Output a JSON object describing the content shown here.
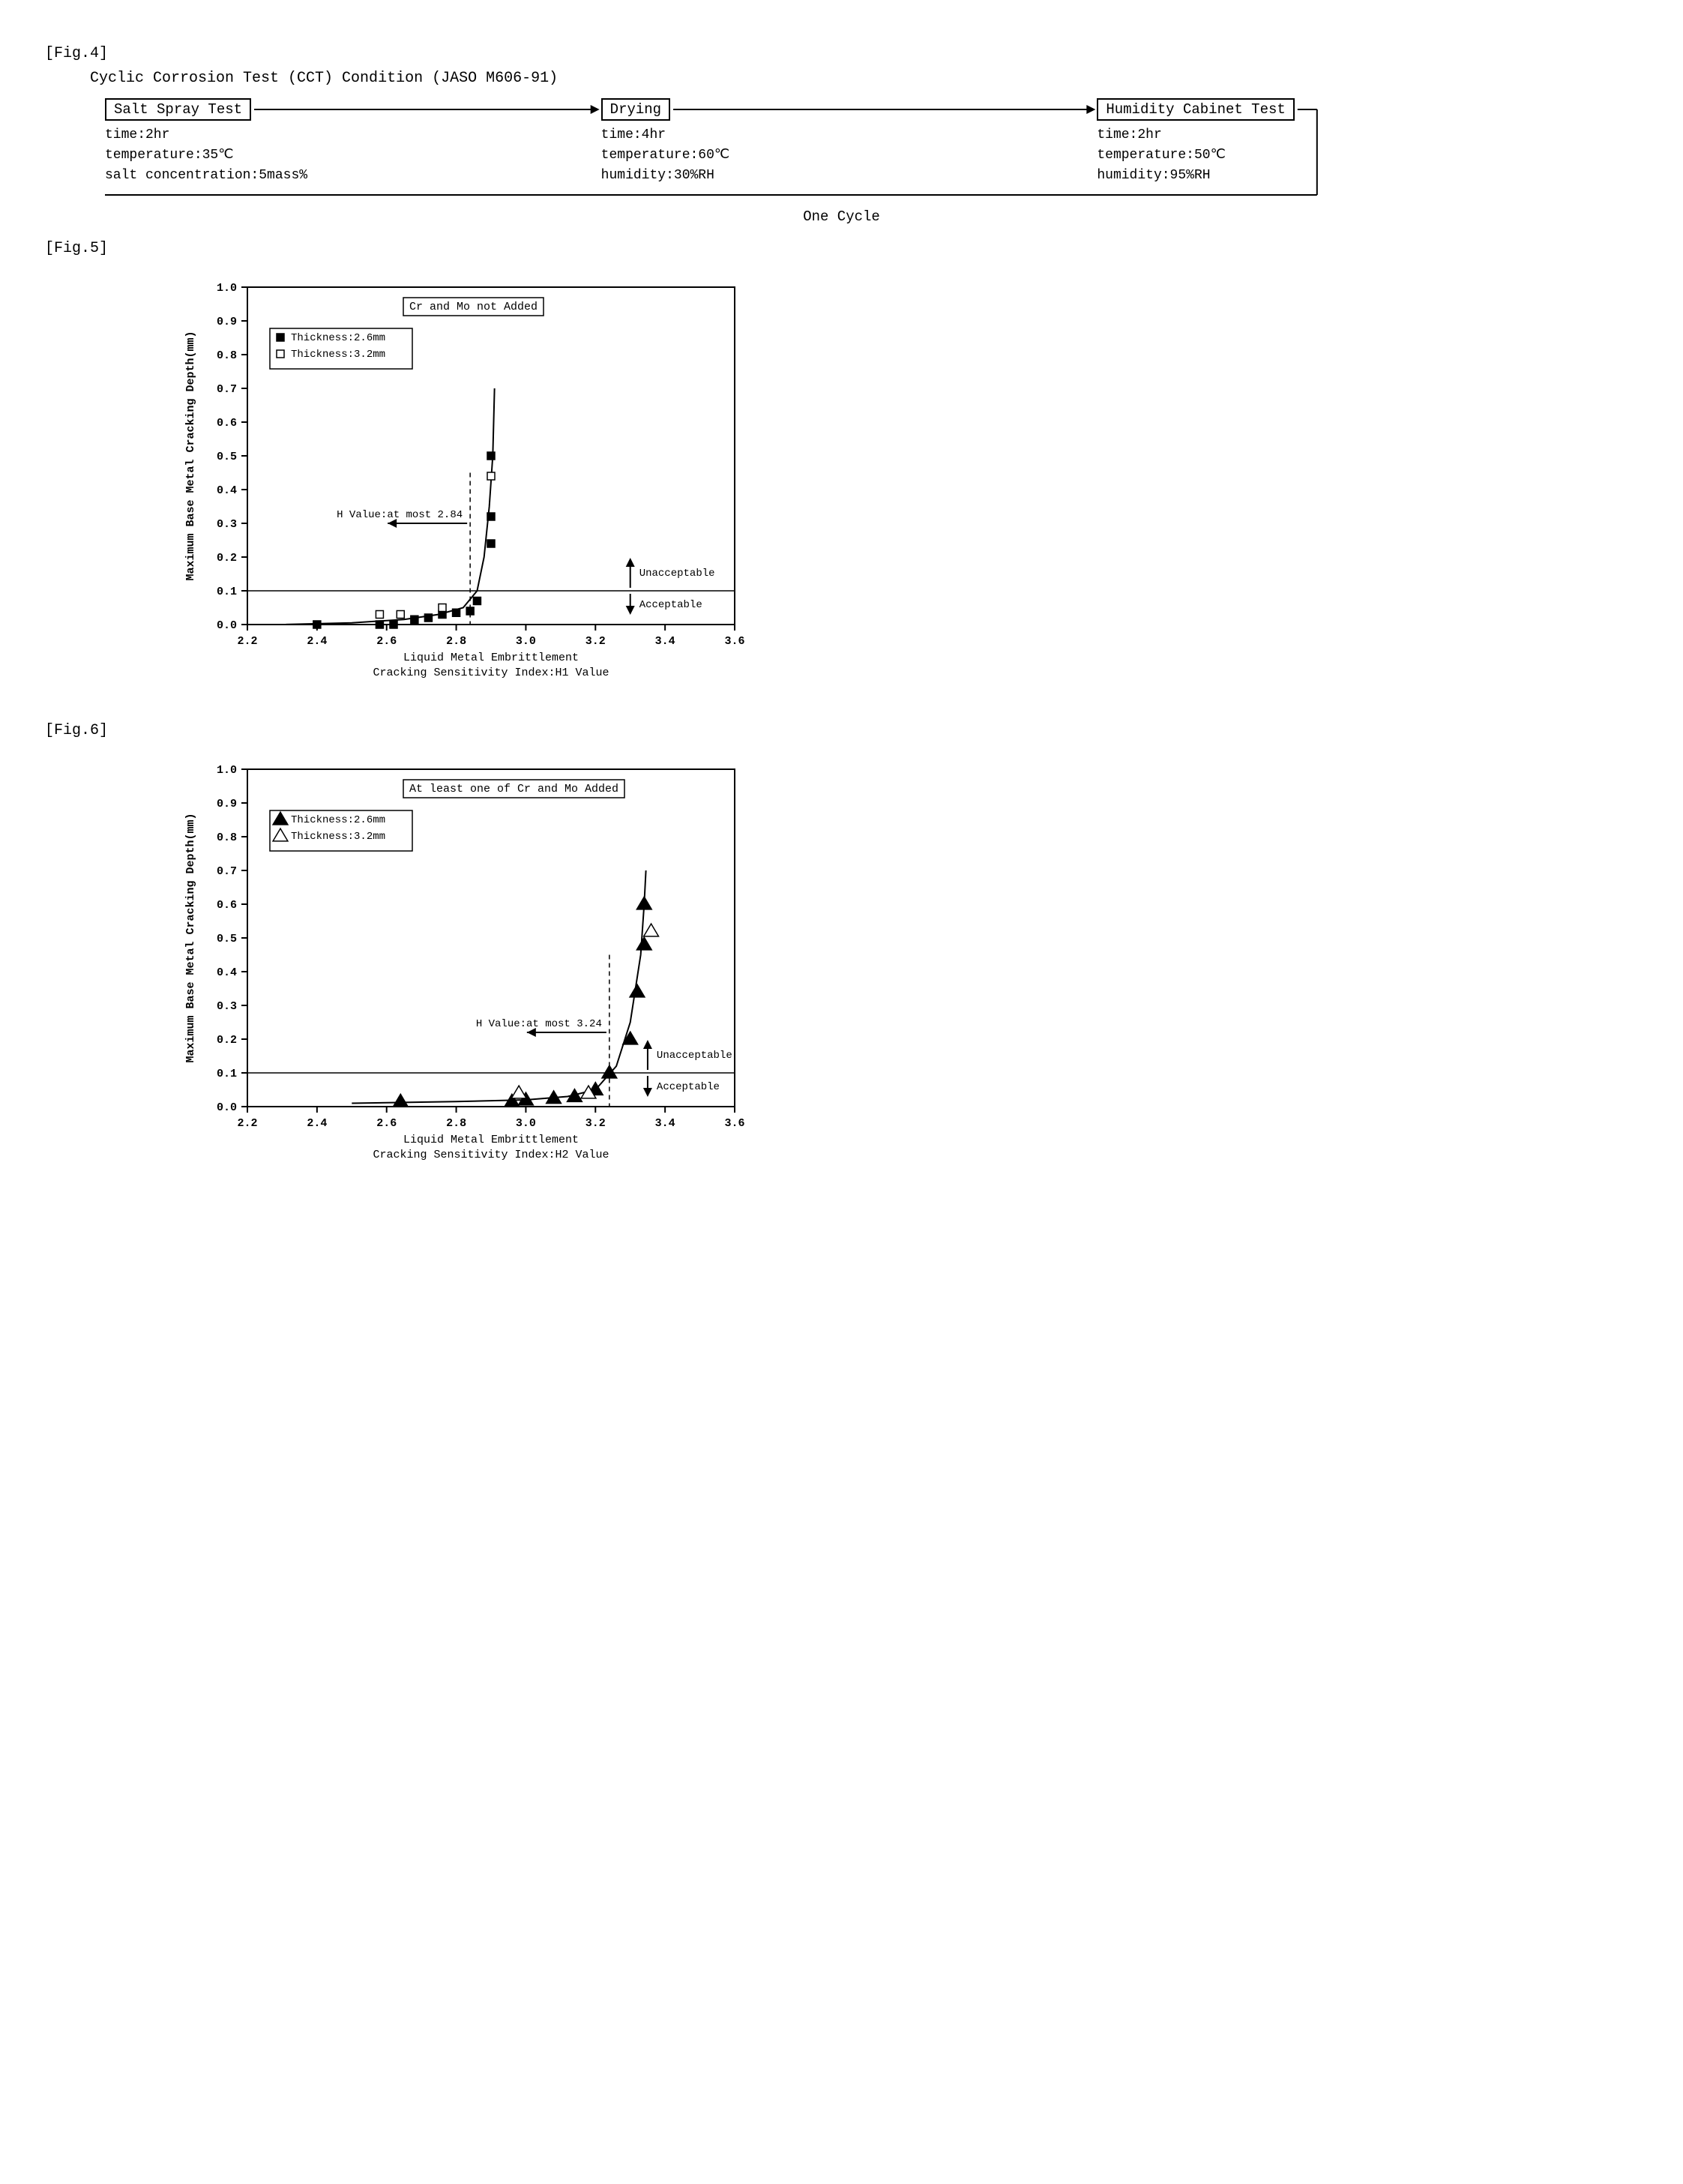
{
  "fig4": {
    "label": "[Fig.4]",
    "title": "Cyclic Corrosion Test (CCT) Condition (JASO M606-91)",
    "stages": [
      {
        "name": "Salt Spray Test",
        "lines": [
          "time:2hr",
          "temperature:35℃",
          "salt concentration:5mass%"
        ]
      },
      {
        "name": "Drying",
        "lines": [
          "time:4hr",
          "temperature:60℃",
          "humidity:30%RH"
        ]
      },
      {
        "name": "Humidity Cabinet Test",
        "lines": [
          "time:2hr",
          "temperature:50℃",
          "humidity:95%RH"
        ]
      }
    ],
    "cycle_label": "One Cycle"
  },
  "fig5": {
    "label": "[Fig.5]",
    "type": "scatter",
    "title_box": "Cr and Mo not Added",
    "ylabel": "Maximum Base Metal Cracking Depth(mm)",
    "xlabel_lines": [
      "Liquid Metal Embrittlement",
      "Cracking Sensitivity Index:H1 Value"
    ],
    "xlim": [
      2.2,
      3.6
    ],
    "xtick_step": 0.2,
    "ylim": [
      0.0,
      1.0
    ],
    "ytick_step": 0.1,
    "legend": [
      {
        "marker": "filled-square",
        "label": "Thickness:2.6mm"
      },
      {
        "marker": "open-square",
        "label": "Thickness:3.2mm"
      }
    ],
    "threshold_y": 0.1,
    "threshold_x": 2.84,
    "threshold_text": "H Value:at most 2.84",
    "zone_labels": {
      "upper": "Unacceptable",
      "lower": "Acceptable",
      "x_at": 3.3
    },
    "series": {
      "filled": [
        [
          2.4,
          0.0
        ],
        [
          2.58,
          0.0
        ],
        [
          2.62,
          0.0
        ],
        [
          2.68,
          0.015
        ],
        [
          2.72,
          0.02
        ],
        [
          2.76,
          0.03
        ],
        [
          2.8,
          0.035
        ],
        [
          2.84,
          0.04
        ],
        [
          2.86,
          0.07
        ],
        [
          2.9,
          0.24
        ],
        [
          2.9,
          0.32
        ],
        [
          2.9,
          0.5
        ]
      ],
      "open": [
        [
          2.58,
          0.03
        ],
        [
          2.64,
          0.03
        ],
        [
          2.76,
          0.05
        ],
        [
          2.9,
          0.44
        ]
      ]
    },
    "curve": [
      [
        2.3,
        0.0
      ],
      [
        2.5,
        0.005
      ],
      [
        2.65,
        0.015
      ],
      [
        2.75,
        0.03
      ],
      [
        2.82,
        0.05
      ],
      [
        2.86,
        0.1
      ],
      [
        2.88,
        0.2
      ],
      [
        2.895,
        0.35
      ],
      [
        2.905,
        0.5
      ],
      [
        2.91,
        0.7
      ]
    ],
    "marker_size": 10,
    "colors": {
      "fg": "#000000",
      "bg": "#ffffff"
    },
    "font_sizes": {
      "axis_label": 15,
      "tick": 15,
      "title_box": 15,
      "legend": 14,
      "annot": 14
    }
  },
  "fig6": {
    "label": "[Fig.6]",
    "type": "scatter",
    "title_box": "At least one of Cr and Mo Added",
    "ylabel": "Maximum Base Metal Cracking Depth(mm)",
    "xlabel_lines": [
      "Liquid Metal Embrittlement",
      "Cracking Sensitivity Index:H2 Value"
    ],
    "xlim": [
      2.2,
      3.6
    ],
    "xtick_step": 0.2,
    "ylim": [
      0.0,
      1.0
    ],
    "ytick_step": 0.1,
    "legend": [
      {
        "marker": "filled-triangle",
        "label": "Thickness:2.6mm"
      },
      {
        "marker": "open-triangle",
        "label": "Thickness:3.2mm"
      }
    ],
    "threshold_y": 0.1,
    "threshold_x": 3.24,
    "threshold_text": "H Value:at most 3.24",
    "zone_labels": {
      "upper": "Unacceptable",
      "lower": "Acceptable",
      "x_at": 3.35
    },
    "series": {
      "filled": [
        [
          2.64,
          0.015
        ],
        [
          2.96,
          0.015
        ],
        [
          3.0,
          0.02
        ],
        [
          3.08,
          0.025
        ],
        [
          3.14,
          0.03
        ],
        [
          3.2,
          0.05
        ],
        [
          3.24,
          0.1
        ],
        [
          3.3,
          0.2
        ],
        [
          3.32,
          0.34
        ],
        [
          3.34,
          0.48
        ],
        [
          3.34,
          0.6
        ]
      ],
      "open": [
        [
          2.98,
          0.04
        ],
        [
          3.18,
          0.04
        ],
        [
          3.36,
          0.52
        ]
      ]
    },
    "curve": [
      [
        2.5,
        0.01
      ],
      [
        2.8,
        0.015
      ],
      [
        3.0,
        0.02
      ],
      [
        3.12,
        0.03
      ],
      [
        3.2,
        0.05
      ],
      [
        3.26,
        0.12
      ],
      [
        3.3,
        0.25
      ],
      [
        3.33,
        0.45
      ],
      [
        3.34,
        0.6
      ],
      [
        3.345,
        0.7
      ]
    ],
    "marker_size": 11,
    "colors": {
      "fg": "#000000",
      "bg": "#ffffff"
    },
    "font_sizes": {
      "axis_label": 15,
      "tick": 15,
      "title_box": 15,
      "legend": 14,
      "annot": 14
    }
  }
}
